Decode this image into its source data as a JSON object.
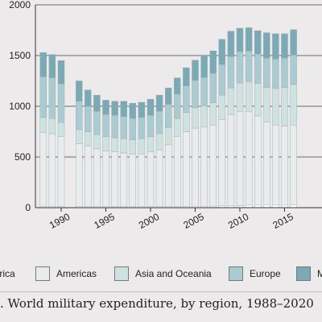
{
  "chart_data": {
    "type": "bar",
    "stacked": true,
    "title": "",
    "xlabel": "",
    "ylabel": "",
    "x": [
      1988,
      1989,
      1990,
      1992,
      1993,
      1994,
      1995,
      1996,
      1997,
      1998,
      1999,
      2000,
      2001,
      2002,
      2003,
      2004,
      2005,
      2006,
      2007,
      2008,
      2009,
      2010,
      2011,
      2012,
      2013,
      2014,
      2015,
      2016
    ],
    "ylim": [
      0,
      2000
    ],
    "y_ticks": [
      "0",
      "500",
      "1000",
      "1500",
      "2000"
    ],
    "x_ticks": [
      "1990",
      "1995",
      "2000",
      "2005",
      "2010",
      "2015"
    ],
    "grid": true,
    "series": [
      {
        "name": "Africa",
        "color": "#ffffff",
        "values": [
          10,
          10,
          10,
          10,
          10,
          10,
          10,
          10,
          10,
          10,
          10,
          10,
          10,
          10,
          10,
          10,
          15,
          15,
          15,
          20,
          20,
          20,
          25,
          25,
          25,
          25,
          25,
          25
        ]
      },
      {
        "name": "Americas",
        "color": "#e8ecec",
        "values": [
          730,
          720,
          690,
          620,
          600,
          570,
          550,
          540,
          530,
          520,
          520,
          540,
          560,
          610,
          690,
          740,
          770,
          780,
          800,
          850,
          900,
          930,
          920,
          880,
          820,
          790,
          780,
          790
        ]
      },
      {
        "name": "Asia and Oceania",
        "color": "#cfe2e2",
        "values": [
          150,
          150,
          140,
          140,
          140,
          140,
          140,
          140,
          140,
          140,
          150,
          150,
          160,
          170,
          180,
          190,
          200,
          210,
          220,
          240,
          260,
          280,
          300,
          320,
          340,
          360,
          380,
          400
        ]
      },
      {
        "name": "Europe",
        "color": "#a9cbd1",
        "values": [
          400,
          400,
          380,
          280,
          250,
          230,
          220,
          220,
          220,
          210,
          210,
          210,
          220,
          230,
          240,
          260,
          270,
          280,
          290,
          300,
          310,
          310,
          300,
          290,
          290,
          290,
          290,
          290
        ]
      },
      {
        "name": "M",
        "color": "#7aaab6",
        "values": [
          240,
          230,
          230,
          200,
          160,
          160,
          140,
          140,
          150,
          150,
          150,
          160,
          160,
          160,
          160,
          180,
          200,
          220,
          220,
          250,
          250,
          230,
          230,
          230,
          250,
          250,
          240,
          250
        ]
      }
    ],
    "legend_position": "bottom"
  },
  "legend": [
    {
      "label": "frica",
      "color": "#ffffff"
    },
    {
      "label": "Americas",
      "color": "#e8ecec"
    },
    {
      "label": "Asia and Oceania",
      "color": "#cfe2e2"
    },
    {
      "label": "Europe",
      "color": "#a9cbd1"
    },
    {
      "label": "M",
      "color": "#7aaab6"
    }
  ],
  "caption": ". World military expenditure, by region, 1988–2020"
}
